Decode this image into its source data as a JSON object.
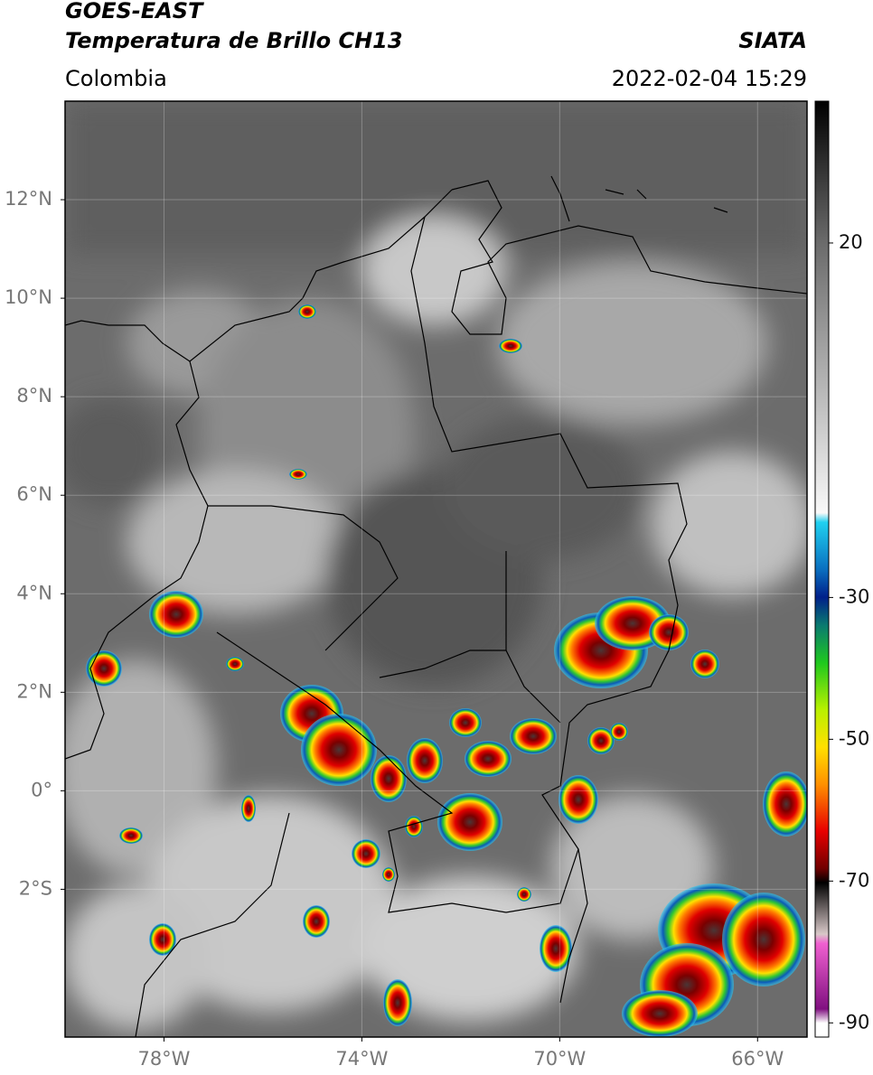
{
  "header": {
    "satellite": "GOES-EAST",
    "product": "Temperatura de Brillo CH13",
    "organization": "SIATA",
    "region": "Colombia",
    "datetime": "2022-02-04 15:29"
  },
  "map": {
    "lon_range": [
      -80,
      -65
    ],
    "lat_range": [
      -5,
      14
    ],
    "grid": true,
    "lat_ticks": [
      {
        "value": 12,
        "label": "12°N"
      },
      {
        "value": 10,
        "label": "10°N"
      },
      {
        "value": 8,
        "label": "8°N"
      },
      {
        "value": 6,
        "label": "6°N"
      },
      {
        "value": 4,
        "label": "4°N"
      },
      {
        "value": 2,
        "label": "2°N"
      },
      {
        "value": 0,
        "label": "0°"
      },
      {
        "value": -2,
        "label": "2°S"
      }
    ],
    "lon_ticks": [
      {
        "value": -78,
        "label": "78°W"
      },
      {
        "value": -74,
        "label": "74°W"
      },
      {
        "value": -70,
        "label": "70°W"
      },
      {
        "value": -66,
        "label": "66°W"
      }
    ]
  },
  "colorbar": {
    "lim": [
      -92,
      40
    ],
    "ticks": [
      20,
      -30,
      -50,
      -70,
      -90
    ]
  }
}
